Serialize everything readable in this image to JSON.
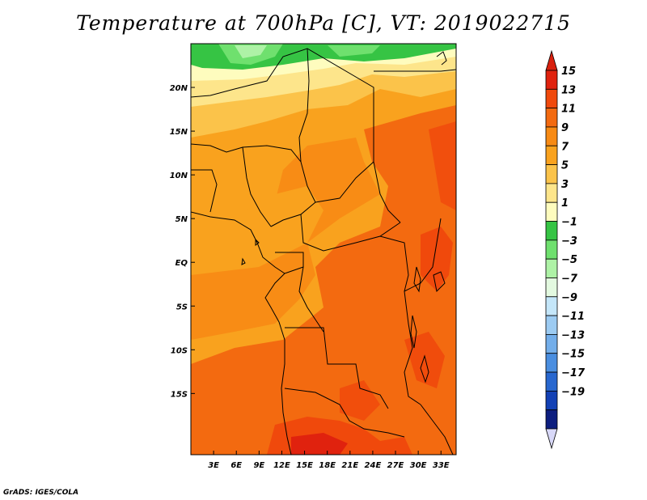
{
  "title": "Temperature at 700hPa [C], VT: 2019022715",
  "credit": "GrADS: IGES/COLA",
  "map": {
    "lon_range": [
      0,
      35
    ],
    "lat_range": [
      -22,
      25
    ],
    "lon_ticks": [
      {
        "value": 3,
        "label": "3E"
      },
      {
        "value": 6,
        "label": "6E"
      },
      {
        "value": 9,
        "label": "9E"
      },
      {
        "value": 12,
        "label": "12E"
      },
      {
        "value": 15,
        "label": "15E"
      },
      {
        "value": 18,
        "label": "18E"
      },
      {
        "value": 21,
        "label": "21E"
      },
      {
        "value": 24,
        "label": "24E"
      },
      {
        "value": 27,
        "label": "27E"
      },
      {
        "value": 30,
        "label": "30E"
      },
      {
        "value": 33,
        "label": "33E"
      }
    ],
    "lat_ticks": [
      {
        "value": 20,
        "label": "20N"
      },
      {
        "value": 15,
        "label": "15N"
      },
      {
        "value": 10,
        "label": "10N"
      },
      {
        "value": 5,
        "label": "5N"
      },
      {
        "value": 0,
        "label": "EQ"
      },
      {
        "value": -5,
        "label": "5S"
      },
      {
        "value": -10,
        "label": "10S"
      },
      {
        "value": -15,
        "label": "15S"
      }
    ]
  },
  "colorbar": {
    "labels": [
      "15",
      "13",
      "11",
      "9",
      "7",
      "5",
      "3",
      "1",
      "−1",
      "−3",
      "−5",
      "−7",
      "−9",
      "−11",
      "−13",
      "−15",
      "−17",
      "−19"
    ],
    "colors": [
      "#e0220e",
      "#f0490c",
      "#f36a10",
      "#f78a14",
      "#f9a21e",
      "#fbc34a",
      "#fde58b",
      "#fefcbe",
      "#36c444",
      "#6fe06e",
      "#aef2a6",
      "#e3f9e0",
      "#c4e6f9",
      "#9ccbf2",
      "#73aeea",
      "#4a8ee0",
      "#2867cf",
      "#1341b5",
      "#0d1e7f"
    ],
    "top_arrow_color": "#d8200e",
    "bottom_arrow_color": "#d8d8f8"
  }
}
